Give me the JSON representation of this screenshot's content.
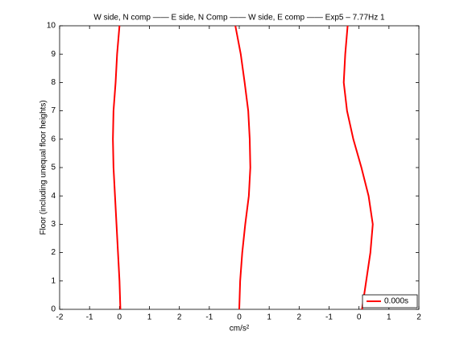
{
  "chart_data": {
    "type": "line",
    "title": "W side, N comp —— E side, N Comp —— W side, E comp —— Exp5 – 7.77Hz 1",
    "xlabel": "cm/s²",
    "ylabel": "Floor (including unequal floor heights)",
    "floors": [
      0,
      1,
      2,
      3,
      4,
      5,
      6,
      7,
      8,
      9,
      10
    ],
    "series": [
      {
        "name": "0.000s",
        "color": "#ff0000",
        "values": [
          0.03,
          0,
          -0.05,
          -0.1,
          -0.15,
          -0.2,
          -0.22,
          -0.2,
          -0.13,
          -0.08,
          0
        ]
      },
      {
        "color": "#ff0000",
        "values": [
          4.0,
          4.03,
          4.1,
          4.2,
          4.32,
          4.37,
          4.35,
          4.3,
          4.18,
          4.05,
          3.87
        ]
      },
      {
        "color": "#ff0000",
        "values": [
          8.1,
          8.24,
          8.38,
          8.46,
          8.32,
          8.08,
          7.81,
          7.6,
          7.49,
          7.54,
          7.62
        ]
      }
    ],
    "xlim": [
      -2,
      10
    ],
    "xticks": [
      -2,
      -1,
      0,
      1,
      2,
      {
        "value": 3,
        "label": "-1"
      },
      {
        "value": 4,
        "label": "0"
      },
      {
        "value": 5,
        "label": "1"
      },
      {
        "value": 6,
        "label": "2"
      },
      {
        "value": 7,
        "label": "-1"
      },
      {
        "value": 8,
        "label": "0"
      },
      {
        "value": 9,
        "label": "1"
      },
      {
        "value": 10,
        "label": "2"
      }
    ],
    "ylim": [
      0,
      10
    ],
    "yticks": [
      0,
      1,
      2,
      3,
      4,
      5,
      6,
      7,
      8,
      9,
      10
    ],
    "legend": "lower right"
  }
}
